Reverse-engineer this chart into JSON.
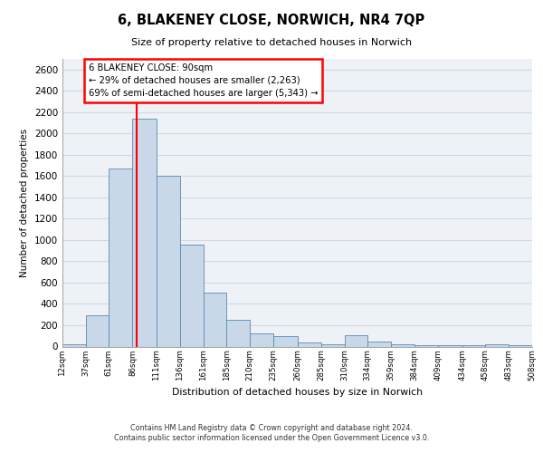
{
  "title": "6, BLAKENEY CLOSE, NORWICH, NR4 7QP",
  "subtitle": "Size of property relative to detached houses in Norwich",
  "xlabel": "Distribution of detached houses by size in Norwich",
  "ylabel": "Number of detached properties",
  "bin_edges": [
    12,
    37,
    61,
    86,
    111,
    136,
    161,
    185,
    210,
    235,
    260,
    285,
    310,
    334,
    359,
    384,
    409,
    434,
    458,
    483,
    508
  ],
  "bin_labels": [
    "12sqm",
    "37sqm",
    "61sqm",
    "86sqm",
    "111sqm",
    "136sqm",
    "161sqm",
    "185sqm",
    "210sqm",
    "235sqm",
    "260sqm",
    "285sqm",
    "310sqm",
    "334sqm",
    "359sqm",
    "384sqm",
    "409sqm",
    "434sqm",
    "458sqm",
    "483sqm",
    "508sqm"
  ],
  "bar_heights": [
    20,
    295,
    1670,
    2140,
    1600,
    960,
    510,
    255,
    125,
    95,
    35,
    25,
    110,
    50,
    20,
    15,
    10,
    15,
    20,
    15
  ],
  "bar_color": "#c8d8e8",
  "bar_edge_color": "#5a8ab0",
  "vline_x": 90,
  "vline_color": "red",
  "annotation_line1": "6 BLAKENEY CLOSE: 90sqm",
  "annotation_line2": "← 29% of detached houses are smaller (2,263)",
  "annotation_line3": "69% of semi-detached houses are larger (5,343) →",
  "ylim": [
    0,
    2700
  ],
  "yticks": [
    0,
    200,
    400,
    600,
    800,
    1000,
    1200,
    1400,
    1600,
    1800,
    2000,
    2200,
    2400,
    2600
  ],
  "grid_color": "#d0d8e8",
  "bg_color": "#eef2f7",
  "footer_line1": "Contains HM Land Registry data © Crown copyright and database right 2024.",
  "footer_line2": "Contains public sector information licensed under the Open Government Licence v3.0."
}
